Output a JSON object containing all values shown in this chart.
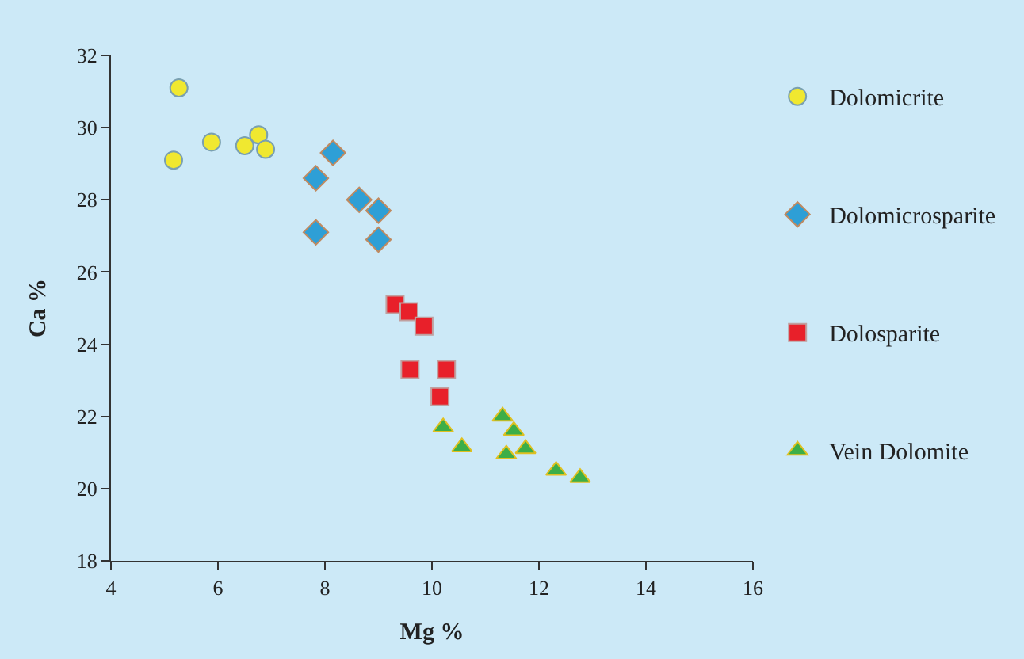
{
  "chart_data": {
    "type": "scatter",
    "xlabel": "Mg %",
    "ylabel": "Ca %",
    "xlim": [
      4,
      16
    ],
    "xticks": [
      4,
      6,
      8,
      10,
      12,
      14,
      16
    ],
    "ylim": [
      18,
      32
    ],
    "yticks": [
      18,
      20,
      22,
      24,
      26,
      28,
      30,
      32
    ],
    "grid": false,
    "legend": "right",
    "series": [
      {
        "name": "Dolomicrite",
        "color": "#f0e830",
        "marker": "circle",
        "x": [
          5.27,
          5.17,
          5.88,
          6.5,
          6.76,
          6.89
        ],
        "values": [
          31.1,
          29.1,
          29.6,
          29.5,
          29.8,
          29.4
        ]
      },
      {
        "name": "Dolomicrosparite",
        "color": "#2e9fd6",
        "marker": "diamond",
        "x": [
          7.83,
          8.15,
          8.64,
          9.0,
          7.83,
          9.0
        ],
        "values": [
          28.6,
          29.3,
          28.0,
          27.7,
          27.1,
          26.9
        ]
      },
      {
        "name": "Dolosparite",
        "color": "#e8202a",
        "marker": "square",
        "x": [
          9.31,
          9.57,
          9.85,
          9.59,
          10.27,
          10.15
        ],
        "values": [
          25.1,
          24.9,
          24.5,
          23.3,
          23.3,
          22.55
        ]
      },
      {
        "name": "Vein Dolomite",
        "color": "#3cae48",
        "marker": "triangle",
        "x": [
          10.21,
          10.56,
          11.32,
          11.53,
          11.39,
          11.75,
          12.32,
          12.77
        ],
        "values": [
          21.7,
          21.15,
          22.0,
          21.6,
          20.95,
          21.1,
          20.5,
          20.3
        ]
      }
    ]
  }
}
